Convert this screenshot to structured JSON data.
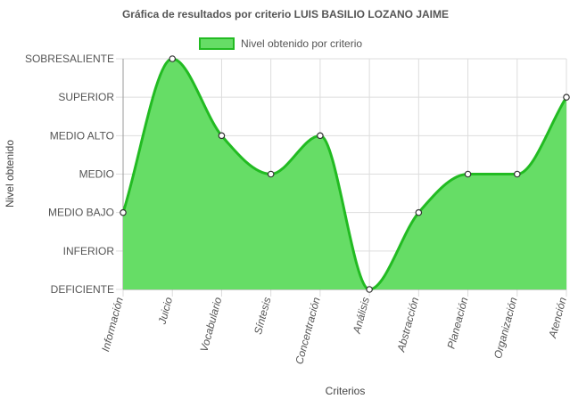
{
  "chart_data": {
    "type": "area",
    "title": "Gráfica de resultados por criterio LUIS BASILIO LOZANO JAIME",
    "xlabel": "Criterios",
    "ylabel": "Nivel obtenido",
    "y_levels": [
      "DEFICIENTE",
      "INFERIOR",
      "MEDIO BAJO",
      "MEDIO",
      "MEDIO ALTO",
      "SUPERIOR",
      "SOBRESALIENTE"
    ],
    "categories": [
      "Información",
      "Juicio",
      "Vocabulario",
      "Síntesis",
      "Concentración",
      "Análisis",
      "Abstracción",
      "Planeación",
      "Organización",
      "Atención"
    ],
    "series": [
      {
        "name": "Nivel obtenido por criterio",
        "values": [
          "MEDIO BAJO",
          "SOBRESALIENTE",
          "MEDIO ALTO",
          "MEDIO",
          "MEDIO ALTO",
          "DEFICIENTE",
          "MEDIO BAJO",
          "MEDIO",
          "MEDIO",
          "SUPERIOR"
        ],
        "fill_color": "#66dd66",
        "line_color": "#22bb22"
      }
    ],
    "legend_position": "top",
    "grid": true
  }
}
